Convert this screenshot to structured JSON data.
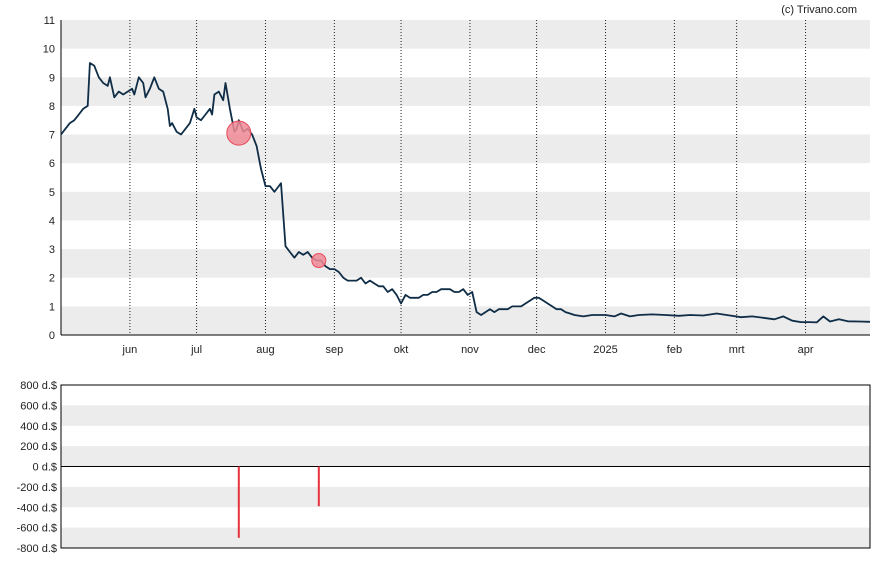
{
  "credit": "(c) Trivano.com",
  "colors": {
    "line": "#0f2d46",
    "band": "#ececec",
    "marker_fill": "#f08a96",
    "marker_stroke": "#e8495a",
    "bar": "#e8333f",
    "vgrid": "#222222"
  },
  "chart_data": [
    {
      "type": "line",
      "title": "",
      "xlabel": "",
      "ylabel": "",
      "ylim": [
        0,
        11
      ],
      "yticks": [
        "0",
        "1",
        "2",
        "3",
        "4",
        "5",
        "6",
        "7",
        "8",
        "9",
        "10",
        "11"
      ],
      "grid": {
        "horizontal_bands": true,
        "vertical_dotted": true
      },
      "xlim": [
        "2024-05-01",
        "2025-04-30"
      ],
      "xticks": [
        {
          "date": "2024-06-01",
          "label": "jun"
        },
        {
          "date": "2024-07-01",
          "label": "jul"
        },
        {
          "date": "2024-08-01",
          "label": "aug"
        },
        {
          "date": "2024-09-01",
          "label": "sep"
        },
        {
          "date": "2024-10-01",
          "label": "okt"
        },
        {
          "date": "2024-11-01",
          "label": "nov"
        },
        {
          "date": "2024-12-01",
          "label": "dec"
        },
        {
          "date": "2025-01-01",
          "label": "2025"
        },
        {
          "date": "2025-02-01",
          "label": "feb"
        },
        {
          "date": "2025-03-01",
          "label": "mrt"
        },
        {
          "date": "2025-04-01",
          "label": "apr"
        }
      ],
      "series": [
        {
          "points": [
            [
              "2024-05-01",
              7.0
            ],
            [
              "2024-05-03",
              7.2
            ],
            [
              "2024-05-05",
              7.4
            ],
            [
              "2024-05-07",
              7.5
            ],
            [
              "2024-05-09",
              7.7
            ],
            [
              "2024-05-11",
              7.9
            ],
            [
              "2024-05-13",
              8.0
            ],
            [
              "2024-05-14",
              9.5
            ],
            [
              "2024-05-16",
              9.4
            ],
            [
              "2024-05-18",
              9.0
            ],
            [
              "2024-05-20",
              8.8
            ],
            [
              "2024-05-22",
              8.7
            ],
            [
              "2024-05-23",
              9.0
            ],
            [
              "2024-05-25",
              8.3
            ],
            [
              "2024-05-27",
              8.5
            ],
            [
              "2024-05-29",
              8.4
            ],
            [
              "2024-05-31",
              8.5
            ],
            [
              "2024-06-02",
              8.6
            ],
            [
              "2024-06-03",
              8.4
            ],
            [
              "2024-06-05",
              9.0
            ],
            [
              "2024-06-07",
              8.8
            ],
            [
              "2024-06-08",
              8.3
            ],
            [
              "2024-06-10",
              8.6
            ],
            [
              "2024-06-11",
              8.8
            ],
            [
              "2024-06-12",
              9.0
            ],
            [
              "2024-06-14",
              8.6
            ],
            [
              "2024-06-16",
              8.5
            ],
            [
              "2024-06-18",
              7.9
            ],
            [
              "2024-06-19",
              7.3
            ],
            [
              "2024-06-20",
              7.4
            ],
            [
              "2024-06-22",
              7.1
            ],
            [
              "2024-06-24",
              7.0
            ],
            [
              "2024-06-26",
              7.2
            ],
            [
              "2024-06-28",
              7.4
            ],
            [
              "2024-06-30",
              7.9
            ],
            [
              "2024-07-01",
              7.6
            ],
            [
              "2024-07-03",
              7.5
            ],
            [
              "2024-07-05",
              7.7
            ],
            [
              "2024-07-07",
              7.9
            ],
            [
              "2024-07-08",
              7.7
            ],
            [
              "2024-07-09",
              8.4
            ],
            [
              "2024-07-11",
              8.5
            ],
            [
              "2024-07-13",
              8.2
            ],
            [
              "2024-07-14",
              8.8
            ],
            [
              "2024-07-16",
              7.9
            ],
            [
              "2024-07-18",
              7.1
            ],
            [
              "2024-07-19",
              7.2
            ],
            [
              "2024-07-20",
              7.5
            ],
            [
              "2024-07-22",
              7.1
            ],
            [
              "2024-07-24",
              7.2
            ],
            [
              "2024-07-26",
              7.0
            ],
            [
              "2024-07-28",
              6.6
            ],
            [
              "2024-07-30",
              5.8
            ],
            [
              "2024-08-01",
              5.2
            ],
            [
              "2024-08-03",
              5.2
            ],
            [
              "2024-08-05",
              5.0
            ],
            [
              "2024-08-06",
              5.1
            ],
            [
              "2024-08-08",
              5.3
            ],
            [
              "2024-08-10",
              3.1
            ],
            [
              "2024-08-12",
              2.9
            ],
            [
              "2024-08-14",
              2.7
            ],
            [
              "2024-08-16",
              2.9
            ],
            [
              "2024-08-18",
              2.8
            ],
            [
              "2024-08-20",
              2.9
            ],
            [
              "2024-08-22",
              2.7
            ],
            [
              "2024-08-24",
              2.6
            ],
            [
              "2024-08-26",
              2.6
            ],
            [
              "2024-08-28",
              2.4
            ],
            [
              "2024-08-30",
              2.3
            ],
            [
              "2024-09-01",
              2.3
            ],
            [
              "2024-09-03",
              2.2
            ],
            [
              "2024-09-05",
              2.0
            ],
            [
              "2024-09-07",
              1.9
            ],
            [
              "2024-09-09",
              1.9
            ],
            [
              "2024-09-11",
              1.9
            ],
            [
              "2024-09-13",
              2.0
            ],
            [
              "2024-09-15",
              1.8
            ],
            [
              "2024-09-17",
              1.9
            ],
            [
              "2024-09-19",
              1.8
            ],
            [
              "2024-09-21",
              1.7
            ],
            [
              "2024-09-23",
              1.7
            ],
            [
              "2024-09-25",
              1.5
            ],
            [
              "2024-09-27",
              1.6
            ],
            [
              "2024-09-29",
              1.4
            ],
            [
              "2024-10-01",
              1.1
            ],
            [
              "2024-10-03",
              1.4
            ],
            [
              "2024-10-05",
              1.3
            ],
            [
              "2024-10-07",
              1.3
            ],
            [
              "2024-10-09",
              1.3
            ],
            [
              "2024-10-11",
              1.4
            ],
            [
              "2024-10-13",
              1.4
            ],
            [
              "2024-10-15",
              1.5
            ],
            [
              "2024-10-17",
              1.5
            ],
            [
              "2024-10-19",
              1.6
            ],
            [
              "2024-10-21",
              1.6
            ],
            [
              "2024-10-23",
              1.6
            ],
            [
              "2024-10-25",
              1.5
            ],
            [
              "2024-10-27",
              1.5
            ],
            [
              "2024-10-29",
              1.6
            ],
            [
              "2024-10-31",
              1.4
            ],
            [
              "2024-11-02",
              1.5
            ],
            [
              "2024-11-04",
              0.8
            ],
            [
              "2024-11-06",
              0.7
            ],
            [
              "2024-11-08",
              0.8
            ],
            [
              "2024-11-10",
              0.9
            ],
            [
              "2024-11-12",
              0.8
            ],
            [
              "2024-11-14",
              0.9
            ],
            [
              "2024-11-16",
              0.9
            ],
            [
              "2024-11-18",
              0.9
            ],
            [
              "2024-11-20",
              1.0
            ],
            [
              "2024-11-22",
              1.0
            ],
            [
              "2024-11-24",
              1.0
            ],
            [
              "2024-11-26",
              1.1
            ],
            [
              "2024-11-28",
              1.2
            ],
            [
              "2024-11-30",
              1.3
            ],
            [
              "2024-12-02",
              1.3
            ],
            [
              "2024-12-04",
              1.2
            ],
            [
              "2024-12-06",
              1.1
            ],
            [
              "2024-12-08",
              1.0
            ],
            [
              "2024-12-10",
              0.9
            ],
            [
              "2024-12-12",
              0.9
            ],
            [
              "2024-12-14",
              0.8
            ],
            [
              "2024-12-16",
              0.75
            ],
            [
              "2024-12-18",
              0.7
            ],
            [
              "2024-12-22",
              0.65
            ],
            [
              "2024-12-26",
              0.7
            ],
            [
              "2025-01-01",
              0.7
            ],
            [
              "2025-01-05",
              0.65
            ],
            [
              "2025-01-08",
              0.75
            ],
            [
              "2025-01-12",
              0.65
            ],
            [
              "2025-01-16",
              0.7
            ],
            [
              "2025-01-22",
              0.72
            ],
            [
              "2025-01-28",
              0.7
            ],
            [
              "2025-02-03",
              0.67
            ],
            [
              "2025-02-08",
              0.7
            ],
            [
              "2025-02-14",
              0.68
            ],
            [
              "2025-02-20",
              0.75
            ],
            [
              "2025-02-26",
              0.68
            ],
            [
              "2025-03-03",
              0.62
            ],
            [
              "2025-03-08",
              0.65
            ],
            [
              "2025-03-13",
              0.6
            ],
            [
              "2025-03-18",
              0.55
            ],
            [
              "2025-03-22",
              0.65
            ],
            [
              "2025-03-26",
              0.5
            ],
            [
              "2025-03-30",
              0.45
            ],
            [
              "2025-04-03",
              0.45
            ],
            [
              "2025-04-06",
              0.44
            ],
            [
              "2025-04-09",
              0.65
            ],
            [
              "2025-04-12",
              0.47
            ],
            [
              "2025-04-16",
              0.55
            ],
            [
              "2025-04-20",
              0.48
            ],
            [
              "2025-04-25",
              0.47
            ],
            [
              "2025-04-30",
              0.46
            ]
          ]
        }
      ],
      "markers": [
        {
          "date": "2024-07-20",
          "value": 7.05,
          "size": "large"
        },
        {
          "date": "2024-08-25",
          "value": 2.6,
          "size": "small"
        }
      ]
    },
    {
      "type": "bar",
      "title": "",
      "xlabel": "",
      "ylabel": "",
      "ylim": [
        -800,
        800
      ],
      "yticks": [
        "800 d.$",
        "600 d.$",
        "400 d.$",
        "200 d.$",
        "0 d.$",
        "-200 d.$",
        "-400 d.$",
        "-600 d.$",
        "-800 d.$"
      ],
      "xlim": [
        "2024-05-01",
        "2025-04-30"
      ],
      "bars": [
        {
          "date": "2024-07-20",
          "value": -700
        },
        {
          "date": "2024-08-25",
          "value": -390
        }
      ]
    }
  ]
}
